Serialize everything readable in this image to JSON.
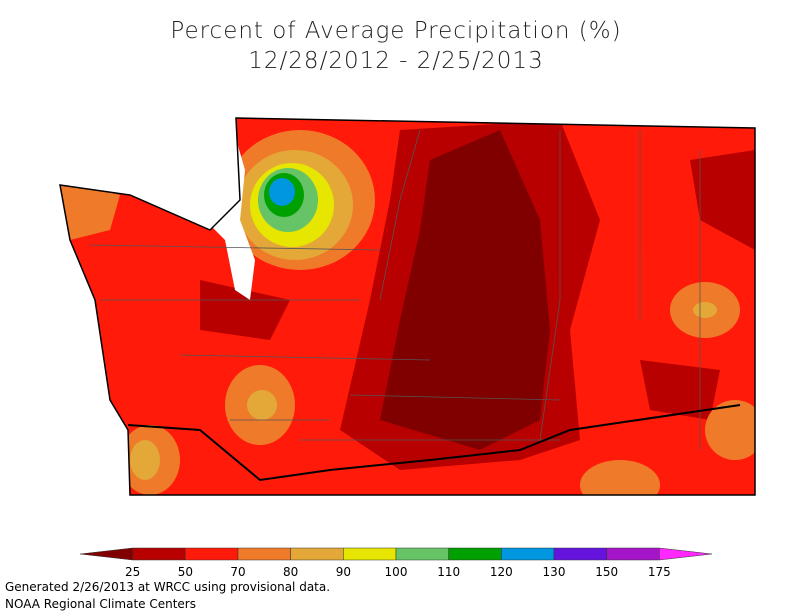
{
  "header": {
    "title": "Percent of Average Precipitation (%)",
    "subtitle": "12/28/2012 - 2/25/2013"
  },
  "legend": {
    "colors": [
      "#800000",
      "#b80000",
      "#ff1a0a",
      "#ef7a2a",
      "#e3a838",
      "#e6e600",
      "#66c466",
      "#00a000",
      "#0096e0",
      "#6414dc",
      "#a414c8",
      "#ff28ff"
    ],
    "labels": [
      "25",
      "50",
      "70",
      "80",
      "90",
      "100",
      "110",
      "120",
      "130",
      "150",
      "175"
    ]
  },
  "footer": {
    "lines": [
      "Generated 2/26/2013 at WRCC using provisional data.",
      "NOAA Regional Climate Centers"
    ]
  }
}
